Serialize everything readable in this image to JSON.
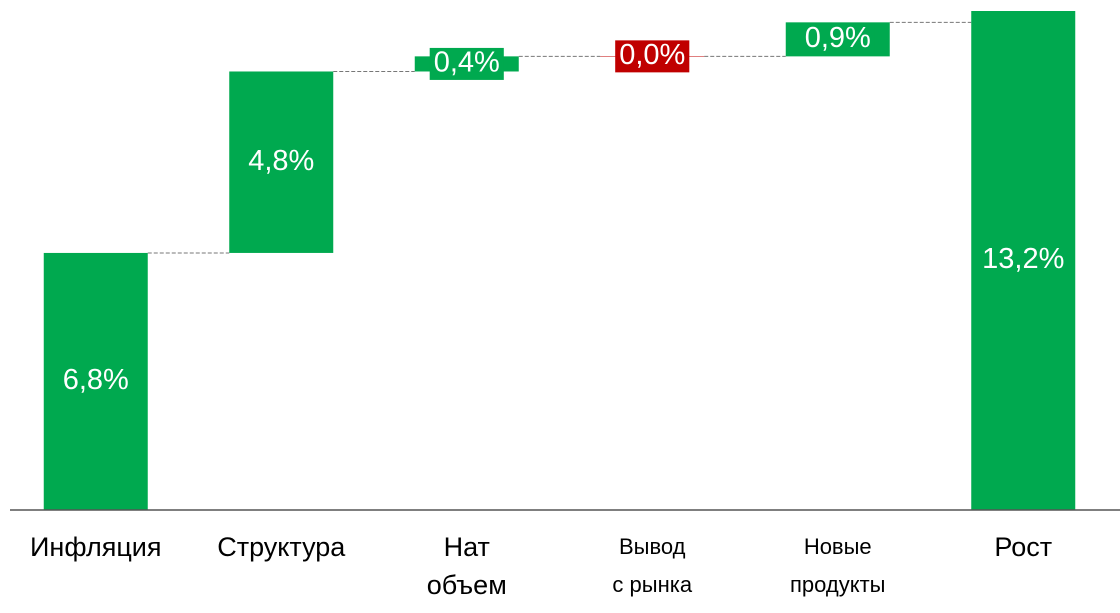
{
  "chart_data": {
    "type": "waterfall",
    "categories": [
      "Инфляция",
      "Структура",
      "Нат\nобъем",
      "Вывод\nс рынка",
      "Новые\nпродукты",
      "Рост"
    ],
    "values": [
      6.8,
      4.8,
      0.4,
      0.0,
      0.9,
      13.2
    ],
    "value_labels": [
      "6,8%",
      "4,8%",
      "0,4%",
      "0,0%",
      "0,9%",
      "13,2%"
    ],
    "colors": [
      "#00a94f",
      "#00a94f",
      "#00a94f",
      "#c00000",
      "#00a94f",
      "#00a94f"
    ],
    "total_index": 5
  }
}
